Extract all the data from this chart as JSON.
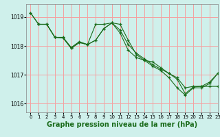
{
  "background_color": "#cff0eb",
  "grid_color": "#f5a0a0",
  "line_color": "#1a6b1a",
  "xlabel": "Graphe pression niveau de la mer (hPa)",
  "xlabel_fontsize": 7,
  "xlim": [
    -0.5,
    23
  ],
  "ylim": [
    1015.7,
    1019.45
  ],
  "yticks": [
    1016,
    1017,
    1018,
    1019
  ],
  "xticks": [
    0,
    1,
    2,
    3,
    4,
    5,
    6,
    7,
    8,
    9,
    10,
    11,
    12,
    13,
    14,
    15,
    16,
    17,
    18,
    19,
    20,
    21,
    22,
    23
  ],
  "series": [
    {
      "x": [
        0,
        1,
        2,
        3,
        4,
        5,
        6,
        7,
        8,
        9,
        10,
        11,
        12,
        13,
        14,
        15,
        16,
        17,
        18,
        19,
        20,
        21,
        22,
        23
      ],
      "y": [
        1019.15,
        1018.75,
        1018.75,
        1018.3,
        1018.3,
        1017.95,
        1018.15,
        1018.05,
        1018.75,
        1018.75,
        1018.8,
        1018.55,
        1018.05,
        1017.75,
        1017.55,
        1017.35,
        1017.2,
        1017.05,
        1016.9,
        1016.55,
        1016.6,
        1016.6,
        1016.75,
        1017.05
      ]
    },
    {
      "x": [
        0,
        1,
        2,
        3,
        4,
        5,
        6,
        7,
        8,
        9,
        10,
        11,
        12,
        13,
        14,
        15,
        16,
        17,
        18,
        19,
        20,
        21,
        22,
        23
      ],
      "y": [
        1019.15,
        1018.75,
        1018.75,
        1018.3,
        1018.28,
        1017.92,
        1018.12,
        1018.05,
        1018.2,
        1018.6,
        1018.8,
        1018.45,
        1017.85,
        1017.6,
        1017.5,
        1017.3,
        1017.15,
        1016.9,
        1016.55,
        1016.3,
        1016.55,
        1016.55,
        1016.7,
        1017.05
      ]
    },
    {
      "x": [
        1,
        2,
        3,
        4,
        5,
        6,
        7,
        8,
        9,
        10,
        11,
        12,
        13,
        14,
        15,
        16,
        17,
        18,
        19,
        20,
        21,
        22,
        23
      ],
      "y": [
        1018.75,
        1018.75,
        1018.3,
        1018.28,
        1017.92,
        1018.12,
        1018.05,
        1018.2,
        1018.6,
        1018.8,
        1018.75,
        1018.2,
        1017.7,
        1017.5,
        1017.45,
        1017.25,
        1017.05,
        1016.85,
        1016.35,
        1016.58,
        1016.6,
        1016.6,
        1016.6
      ]
    }
  ]
}
